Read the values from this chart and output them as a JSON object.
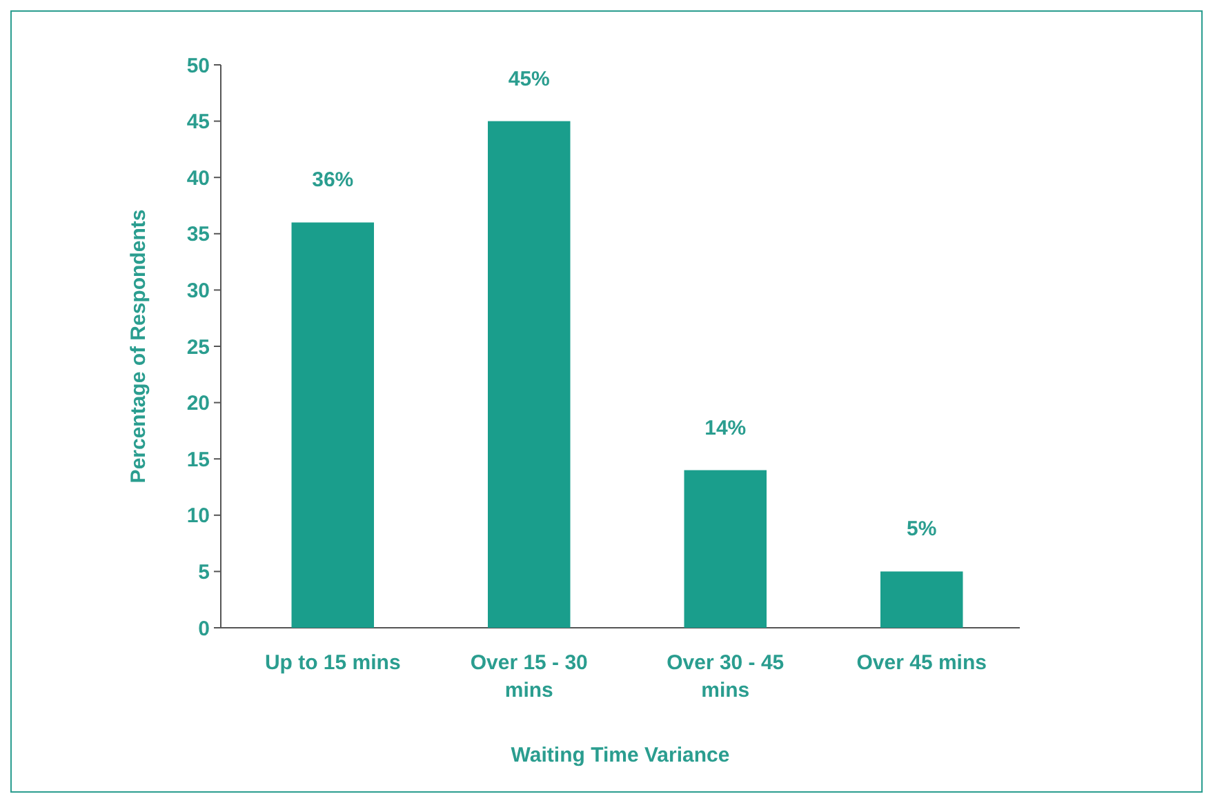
{
  "chart_data": {
    "type": "bar",
    "xlabel": "Waiting Time Variance",
    "ylabel": "Percentage of Respondents",
    "categories": [
      "Up to 15 mins",
      "Over 15 - 30 mins",
      "Over 30 - 45 mins",
      "Over 45 mins"
    ],
    "values": [
      36,
      45,
      14,
      5
    ],
    "value_labels": [
      "36%",
      "45%",
      "14%",
      "5%"
    ],
    "color": "#1a9e8c",
    "ylim": [
      0,
      50
    ],
    "yticks": [
      0,
      5,
      10,
      15,
      20,
      25,
      30,
      35,
      40,
      45,
      50
    ],
    "grid": false
  }
}
